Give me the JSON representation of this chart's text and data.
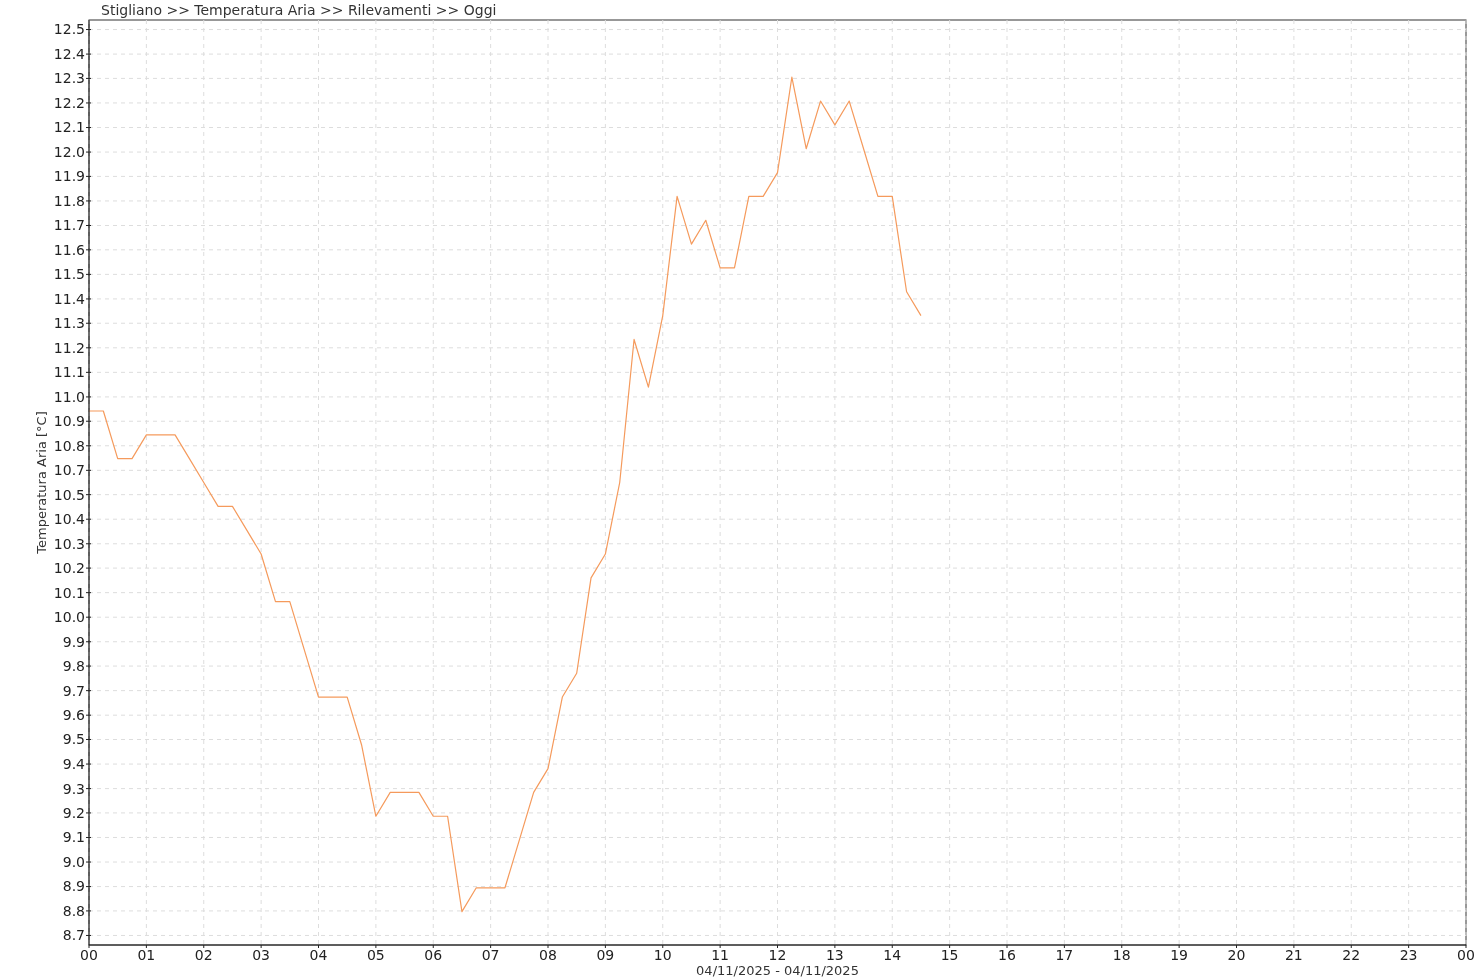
{
  "chart_data": {
    "type": "line",
    "title": "Stigliano >> Temperatura Aria >> Rilevamenti >> Oggi",
    "xlabel": "04/11/2025 - 04/11/2025",
    "ylabel": "Temperatura Aria [°C]",
    "x": [
      0,
      0.25,
      0.5,
      0.75,
      1,
      1.25,
      1.5,
      1.75,
      2,
      2.25,
      2.5,
      2.75,
      3,
      3.25,
      3.5,
      3.75,
      4,
      4.25,
      4.5,
      4.75,
      5,
      5.25,
      5.5,
      5.75,
      6,
      6.25,
      6.5,
      6.75,
      7,
      7.25,
      7.5,
      7.75,
      8,
      8.25,
      8.5,
      8.75,
      9,
      9.25,
      9.5,
      9.75,
      10,
      10.25,
      10.5,
      10.75,
      11,
      11.25,
      11.5,
      11.75,
      12,
      12.25,
      12.5,
      12.75,
      13,
      13.25,
      13.5,
      13.75,
      14,
      14.25,
      14.5
    ],
    "series": [
      {
        "color": "#f59a5c",
        "values": [
          10.9,
          10.9,
          10.7,
          10.7,
          10.8,
          10.8,
          10.8,
          10.7,
          10.6,
          10.5,
          10.5,
          10.4,
          10.3,
          10.1,
          10.1,
          9.9,
          9.7,
          9.7,
          9.7,
          9.5,
          9.2,
          9.3,
          9.3,
          9.3,
          9.2,
          9.2,
          8.8,
          8.9,
          8.9,
          8.9,
          9.1,
          9.3,
          9.4,
          9.7,
          9.8,
          10.2,
          10.3,
          10.6,
          11.2,
          11.0,
          11.3,
          11.8,
          11.6,
          11.7,
          11.5,
          11.5,
          11.8,
          11.8,
          11.9,
          12.3,
          12.0,
          12.2,
          12.1,
          12.2,
          12.0,
          11.8,
          11.8,
          11.4,
          11.3
        ]
      }
    ],
    "xlim": [
      0,
      24
    ],
    "xticks": [
      {
        "value": 0,
        "label": "00"
      },
      {
        "value": 1,
        "label": "01"
      },
      {
        "value": 2,
        "label": "02"
      },
      {
        "value": 3,
        "label": "03"
      },
      {
        "value": 4,
        "label": "04"
      },
      {
        "value": 5,
        "label": "05"
      },
      {
        "value": 6,
        "label": "06"
      },
      {
        "value": 7,
        "label": "07"
      },
      {
        "value": 8,
        "label": "08"
      },
      {
        "value": 9,
        "label": "09"
      },
      10,
      11,
      12,
      13,
      14,
      15,
      16,
      17,
      18,
      19,
      20,
      21,
      22,
      23,
      {
        "value": 24,
        "label": "00"
      }
    ],
    "ylim": [
      8.66,
      12.54
    ],
    "yticks": [
      8.7,
      {
        "value": 8.803,
        "label": "8.8"
      },
      {
        "value": 8.905,
        "label": "8.9"
      },
      {
        "value": 9.008,
        "label": "9.0"
      },
      {
        "value": 9.111,
        "label": "9.1"
      },
      {
        "value": 9.214,
        "label": "9.2"
      },
      {
        "value": 9.316,
        "label": "9.3"
      },
      {
        "value": 9.419,
        "label": "9.4"
      },
      {
        "value": 9.522,
        "label": "9.5"
      },
      {
        "value": 9.624,
        "label": "9.6"
      },
      {
        "value": 9.727,
        "label": "9.7"
      },
      {
        "value": 9.83,
        "label": "9.8"
      },
      {
        "value": 9.932,
        "label": "9.9"
      },
      {
        "value": 10.035,
        "label": "10.0"
      },
      {
        "value": 10.138,
        "label": "10.1"
      },
      {
        "value": 10.241,
        "label": "10.2"
      },
      {
        "value": 10.343,
        "label": "10.3"
      },
      {
        "value": 10.446,
        "label": "10.4"
      },
      {
        "value": 10.549,
        "label": "10.5"
      },
      {
        "value": 10.651,
        "label": "10.7"
      },
      {
        "value": 10.754,
        "label": "10.8"
      },
      {
        "value": 10.857,
        "label": "10.9"
      },
      {
        "value": 10.959,
        "label": "11.0"
      },
      {
        "value": 11.062,
        "label": "11.1"
      },
      {
        "value": 11.165,
        "label": "11.2"
      },
      {
        "value": 11.268,
        "label": "11.3"
      },
      {
        "value": 11.37,
        "label": "11.4"
      },
      {
        "value": 11.473,
        "label": "11.5"
      },
      {
        "value": 11.576,
        "label": "11.6"
      },
      {
        "value": 11.678,
        "label": "11.7"
      },
      {
        "value": 11.781,
        "label": "11.8"
      },
      {
        "value": 11.884,
        "label": "11.9"
      },
      {
        "value": 11.986,
        "label": "12.0"
      },
      {
        "value": 12.089,
        "label": "12.1"
      },
      {
        "value": 12.192,
        "label": "12.2"
      },
      {
        "value": 12.295,
        "label": "12.3"
      },
      {
        "value": 12.397,
        "label": "12.4"
      },
      12.5
    ],
    "grid": true,
    "line_style": "solid",
    "marker": "none"
  }
}
